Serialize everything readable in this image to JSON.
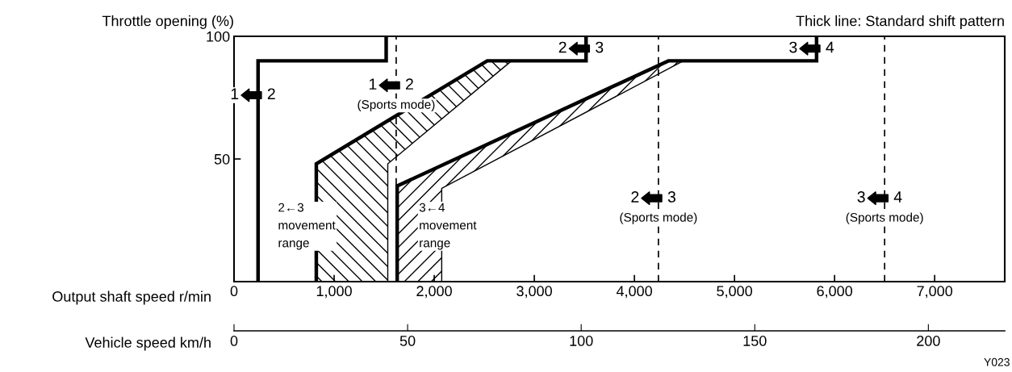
{
  "chart_data": {
    "type": "line",
    "title": "Thick line: Standard shift pattern",
    "ylabel": "Throttle opening (%)",
    "xlabel": "Output shaft speed r/min",
    "x2label": "Vehicle speed km/h",
    "xlim": [
      0,
      7700
    ],
    "ylim": [
      0,
      100
    ],
    "xticks": [
      0,
      {
        "value": 1000,
        "label": "1,000"
      },
      {
        "value": 2000,
        "label": "2,000"
      },
      {
        "value": 3000,
        "label": "3,000"
      },
      {
        "value": 4000,
        "label": "4,000"
      },
      {
        "value": 5000,
        "label": "5,000"
      },
      {
        "value": 6000,
        "label": "6,000"
      },
      {
        "value": 7000,
        "label": "7,000"
      }
    ],
    "yticks": [
      50,
      100
    ],
    "x2lim": [
      0,
      222
    ],
    "x2ticks": [
      0,
      50,
      100,
      150,
      200
    ],
    "grid": false,
    "legend": false,
    "series": [
      {
        "type": "area",
        "color": "#000000",
        "x": [
          822,
          822,
          2530,
          2773,
          1536,
          1536
        ],
        "values": [
          0,
          48,
          90,
          90,
          48,
          0
        ]
      },
      {
        "type": "area",
        "color": "#000000",
        "x": [
          1630,
          1630,
          4340,
          4490,
          2075,
          2075
        ],
        "values": [
          0,
          39,
          90,
          90,
          38,
          0
        ]
      },
      {
        "color": "#000000",
        "x": [
          240,
          240,
          1520,
          1520
        ],
        "values": [
          0,
          90,
          90,
          100
        ]
      },
      {
        "color": "#000000",
        "x": [
          822,
          822,
          2530,
          3517,
          3517
        ],
        "values": [
          0,
          48,
          90,
          90,
          100
        ]
      },
      {
        "color": "#000000",
        "x": [
          1630,
          1630,
          4340,
          5820,
          5820
        ],
        "values": [
          0,
          39,
          90,
          90,
          100
        ]
      }
    ],
    "ref_lines": [
      {
        "axis": "x",
        "value": 1620,
        "label": null,
        "color": "#000000",
        "line_style": "dashed"
      },
      {
        "axis": "x",
        "value": 4240,
        "label": null,
        "color": "#000000",
        "line_style": "dashed"
      },
      {
        "axis": "x",
        "value": 6500,
        "label": null,
        "color": "#000000",
        "line_style": "dashed"
      }
    ],
    "annotations": [
      {
        "text": "1",
        "x": 240,
        "y": 76
      },
      {
        "text": "2",
        "x": 240,
        "y": 76
      },
      {
        "text": "1",
        "x": 1620,
        "y": 80
      },
      {
        "text": "2",
        "x": 1620,
        "y": 80
      },
      {
        "text": "(Sports mode)",
        "x": 1620,
        "y": 80
      },
      {
        "text": "2",
        "x": 3517,
        "y": 95
      },
      {
        "text": "3",
        "x": 3517,
        "y": 95
      },
      {
        "text": "3",
        "x": 5820,
        "y": 95
      },
      {
        "text": "4",
        "x": 5820,
        "y": 95
      },
      {
        "text": "2",
        "x": 4240,
        "y": 34
      },
      {
        "text": "3",
        "x": 4240,
        "y": 34
      },
      {
        "text": "(Sports mode)",
        "x": 4240,
        "y": 34
      },
      {
        "text": "3",
        "x": 6500,
        "y": 34
      },
      {
        "text": "4",
        "x": 6500,
        "y": 34
      },
      {
        "text": "(Sports mode)",
        "x": 6500,
        "y": 34
      },
      "2←3\nmovement\nrange",
      "3←4\nmovement\nrange",
      "Y023"
    ]
  }
}
